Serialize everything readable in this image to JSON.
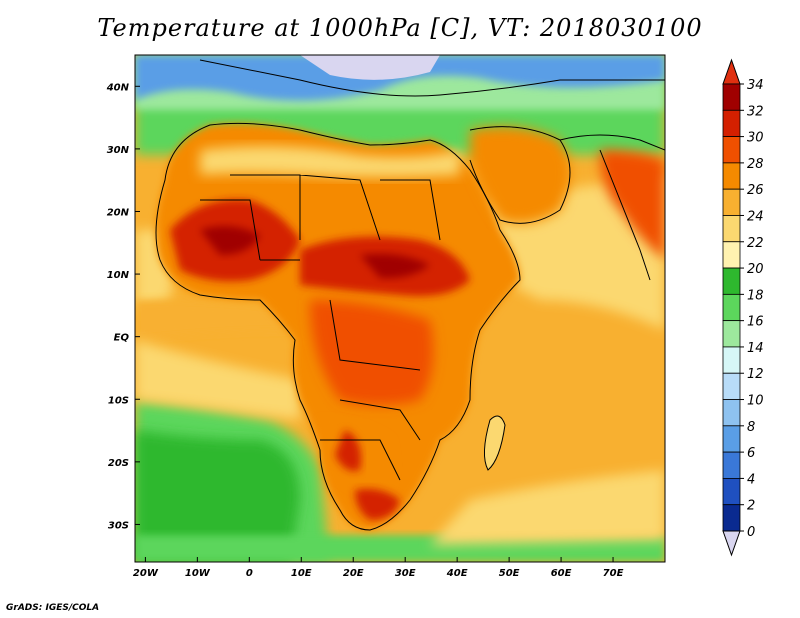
{
  "title": "Temperature at 1000hPa [C], VT: 2018030100",
  "credit": "GrADS: IGES/COLA",
  "map": {
    "lon_range": [
      -22,
      80
    ],
    "lat_range": [
      -36,
      45
    ],
    "lon_ticks": [
      {
        "value": -20,
        "label": "20W"
      },
      {
        "value": -10,
        "label": "10W"
      },
      {
        "value": 0,
        "label": "0"
      },
      {
        "value": 10,
        "label": "10E"
      },
      {
        "value": 20,
        "label": "20E"
      },
      {
        "value": 30,
        "label": "30E"
      },
      {
        "value": 40,
        "label": "40E"
      },
      {
        "value": 50,
        "label": "50E"
      },
      {
        "value": 60,
        "label": "60E"
      },
      {
        "value": 70,
        "label": "70E"
      }
    ],
    "lat_ticks": [
      {
        "value": 40,
        "label": "40N"
      },
      {
        "value": 30,
        "label": "30N"
      },
      {
        "value": 20,
        "label": "20N"
      },
      {
        "value": 10,
        "label": "10N"
      },
      {
        "value": 0,
        "label": "EQ"
      },
      {
        "value": -10,
        "label": "10S"
      },
      {
        "value": -20,
        "label": "20S"
      },
      {
        "value": -30,
        "label": "30S"
      }
    ]
  },
  "colorbar": {
    "labels": [
      "34",
      "32",
      "30",
      "28",
      "26",
      "24",
      "22",
      "20",
      "18",
      "16",
      "14",
      "12",
      "10",
      "8",
      "6",
      "4",
      "2",
      "0"
    ],
    "colors": [
      "#a00000",
      "#d42000",
      "#f05000",
      "#f58a00",
      "#f8b030",
      "#fbd870",
      "#fff2b0",
      "#2eb82e",
      "#5cd65c",
      "#9de89d",
      "#d6f7f7",
      "#b8dcf8",
      "#8ec2f0",
      "#5a9ee6",
      "#3a78d8",
      "#1f50c0",
      "#0a2a90",
      "#060c60"
    ],
    "top_arrow_color": "#e03010",
    "bottom_arrow_color": "#d9d6f0"
  },
  "land_regions": [
    {
      "name": "hot-west-africa",
      "color": "#d42000"
    },
    {
      "name": "hot-sudan",
      "color": "#d42000"
    },
    {
      "name": "hot-south-africa",
      "color": "#d42000"
    }
  ]
}
